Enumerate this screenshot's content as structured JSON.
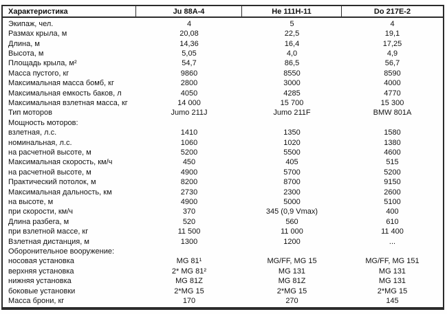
{
  "table": {
    "columns": [
      "Характеристика",
      "Ju 88A-4",
      "He 111H-11",
      "Do 217E-2"
    ],
    "rows": [
      {
        "label": "Экипаж, чел.",
        "values": [
          "4",
          "5",
          "4"
        ]
      },
      {
        "label": "Размах крыла, м",
        "values": [
          "20,08",
          "22,5",
          "19,1"
        ]
      },
      {
        "label": "Длина, м",
        "values": [
          "14,36",
          "16,4",
          "17,25"
        ]
      },
      {
        "label": "Высота, м",
        "values": [
          "5,05",
          "4,0",
          "4,9"
        ]
      },
      {
        "label": "Площадь крыла, м²",
        "values": [
          "54,7",
          "86,5",
          "56,7"
        ]
      },
      {
        "label": "Масса пустого, кг",
        "values": [
          "9860",
          "8550",
          "8590"
        ]
      },
      {
        "label": "Максимальная масса бомб, кг",
        "values": [
          "2800",
          "3000",
          "4000"
        ]
      },
      {
        "label": "Максимальная емкость баков, л",
        "values": [
          "4050",
          "4285",
          "4770"
        ]
      },
      {
        "label": "Максимальная взлетная масса, кг",
        "values": [
          "14 000",
          "15 700",
          "15 300"
        ]
      },
      {
        "label": "Тип моторов",
        "values": [
          "Jumo 211J",
          "Jumo 211F",
          "BMW 801A"
        ]
      },
      {
        "label": "Мощность моторов:",
        "values": [
          "",
          "",
          ""
        ]
      },
      {
        "label": "взлетная, л.с.",
        "values": [
          "1410",
          "1350",
          "1580"
        ]
      },
      {
        "label": "номинальная, л.с.",
        "values": [
          "1060",
          "1020",
          "1380"
        ]
      },
      {
        "label": "на расчетной высоте, м",
        "values": [
          "5200",
          "5500",
          "4600"
        ]
      },
      {
        "label": "Максимальная скорость, км/ч",
        "values": [
          "450",
          "405",
          "515"
        ]
      },
      {
        "label": "на расчетной высоте, м",
        "values": [
          "4900",
          "5700",
          "5200"
        ]
      },
      {
        "label": "Практический потолок, м",
        "values": [
          "8200",
          "8700",
          "9150"
        ]
      },
      {
        "label": "Максимальная дальность, км",
        "values": [
          "2730",
          "2300",
          "2600"
        ]
      },
      {
        "label": "на высоте, м",
        "values": [
          "4900",
          "5000",
          "5100"
        ]
      },
      {
        "label": "при скорости, км/ч",
        "values": [
          "370",
          "345 (0,9 Vmax)",
          "400"
        ]
      },
      {
        "label": "Длина разбега, м",
        "values": [
          "520",
          "560",
          "610"
        ]
      },
      {
        "label": "при взлетной массе, кг",
        "values": [
          "11 500",
          "11 000",
          "11 400"
        ]
      },
      {
        "label": "Взлетная дистанция, м",
        "values": [
          "1300",
          "1200",
          "..."
        ]
      },
      {
        "label": "Оборонительное вооружение:",
        "values": [
          "",
          "",
          ""
        ]
      },
      {
        "label": "носовая установка",
        "values": [
          "MG 81¹",
          "MG/FF, MG 15",
          "MG/FF, MG 151"
        ]
      },
      {
        "label": "верхняя установка",
        "values": [
          "2* MG 81²",
          "MG 131",
          "MG 131"
        ]
      },
      {
        "label": "нижняя установка",
        "values": [
          "MG 81Z",
          "MG 81Z",
          "MG 131"
        ]
      },
      {
        "label": "боковые установки",
        "values": [
          "2*MG 15",
          "2*MG 15",
          "2*MG 15"
        ]
      },
      {
        "label": "Масса брони, кг",
        "values": [
          "170",
          "270",
          "145"
        ]
      }
    ],
    "colors": {
      "text": "#111111",
      "border": "#2b2b2b",
      "background": "#fefefe"
    }
  }
}
